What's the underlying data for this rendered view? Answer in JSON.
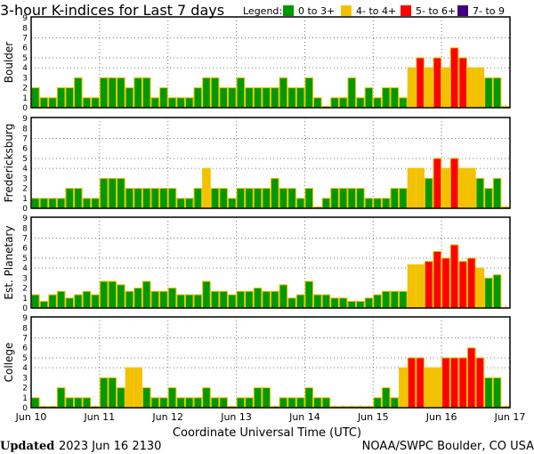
{
  "title": "3-hour K-indices for Last 7 days",
  "legend": {
    "label": "Legend:",
    "items": [
      {
        "label": "0 to 3+",
        "color": "#009900"
      },
      {
        "label": "4- to 4+",
        "color": "#f2c200"
      },
      {
        "label": "5- to 6+",
        "color": "#ff0000"
      },
      {
        "label": "7- to 9",
        "color": "#400080"
      }
    ]
  },
  "footer": {
    "updated_label": "Updated",
    "updated_value": "2023 Jun 16 2130",
    "credit": "NOAA/SWPC Boulder, CO USA"
  },
  "chart_data": {
    "type": "bar",
    "xlabel": "Coordinate Universal Time (UTC)",
    "x_tick_labels": [
      "Jun 10",
      "Jun 11",
      "Jun 12",
      "Jun 13",
      "Jun 14",
      "Jun 15",
      "Jun 16",
      "Jun 17"
    ],
    "y_tick_labels": [
      "0",
      "1",
      "2",
      "3",
      "4",
      "5",
      "6",
      "7",
      "8",
      "9"
    ],
    "ylim": [
      0,
      9
    ],
    "horizontal_gridlines": [
      4,
      5,
      7
    ],
    "vertical_gridlines": "daily",
    "interval_hours": 3,
    "outline_color": "#f2c200",
    "panels": [
      {
        "name": "Boulder",
        "values": [
          2,
          1,
          1,
          2,
          2,
          3,
          1,
          1,
          3,
          3,
          3,
          2,
          3,
          3,
          1,
          2,
          1,
          1,
          1,
          2,
          3,
          3,
          2,
          2,
          3,
          2,
          2,
          2,
          2,
          3,
          2,
          2,
          3,
          1,
          0,
          1,
          1,
          3,
          1,
          2,
          1,
          2,
          2,
          1,
          4,
          5,
          4,
          5,
          4,
          6,
          5,
          4,
          4,
          3,
          3,
          0
        ]
      },
      {
        "name": "Fredericksburg",
        "values": [
          1,
          1,
          1,
          1,
          2,
          2,
          1,
          1,
          3,
          3,
          3,
          2,
          2,
          2,
          2,
          2,
          2,
          1,
          1,
          2,
          4,
          2,
          2,
          1,
          2,
          2,
          2,
          2,
          3,
          2,
          2,
          1,
          2,
          0,
          1,
          2,
          2,
          2,
          2,
          1,
          1,
          1,
          2,
          2,
          4,
          4,
          3,
          5,
          4,
          5,
          4,
          4,
          3,
          2,
          3,
          0
        ]
      },
      {
        "name": "Est. Planetary",
        "values": [
          1.33,
          0.67,
          1.33,
          1.67,
          1,
          1.33,
          1.67,
          1.33,
          2.67,
          2.67,
          2.33,
          1.67,
          2,
          2.67,
          1.67,
          1.67,
          2,
          1.33,
          1.33,
          1.33,
          2.67,
          1.67,
          1.67,
          1.33,
          1.67,
          1.67,
          2,
          1.67,
          1.67,
          2.33,
          1,
          1.33,
          2.67,
          1.33,
          1.33,
          1,
          1,
          0.67,
          0.67,
          1,
          1.33,
          1.67,
          1.67,
          1.67,
          4.33,
          4.33,
          4.67,
          5.67,
          5,
          6.33,
          4.67,
          5,
          4,
          3,
          3.33,
          null
        ]
      },
      {
        "name": "College",
        "values": [
          1,
          0,
          0,
          2,
          1,
          1,
          1,
          0,
          3,
          3,
          2,
          4,
          4,
          2,
          1,
          1,
          2,
          1,
          1,
          1,
          2,
          1,
          1,
          0,
          1,
          1,
          2,
          2,
          0,
          1,
          1,
          1,
          2,
          1,
          1,
          0,
          0,
          0,
          0,
          0,
          1,
          2,
          1,
          4,
          5,
          5,
          4,
          4,
          5,
          5,
          5,
          6,
          5,
          3,
          3,
          0
        ]
      }
    ]
  }
}
